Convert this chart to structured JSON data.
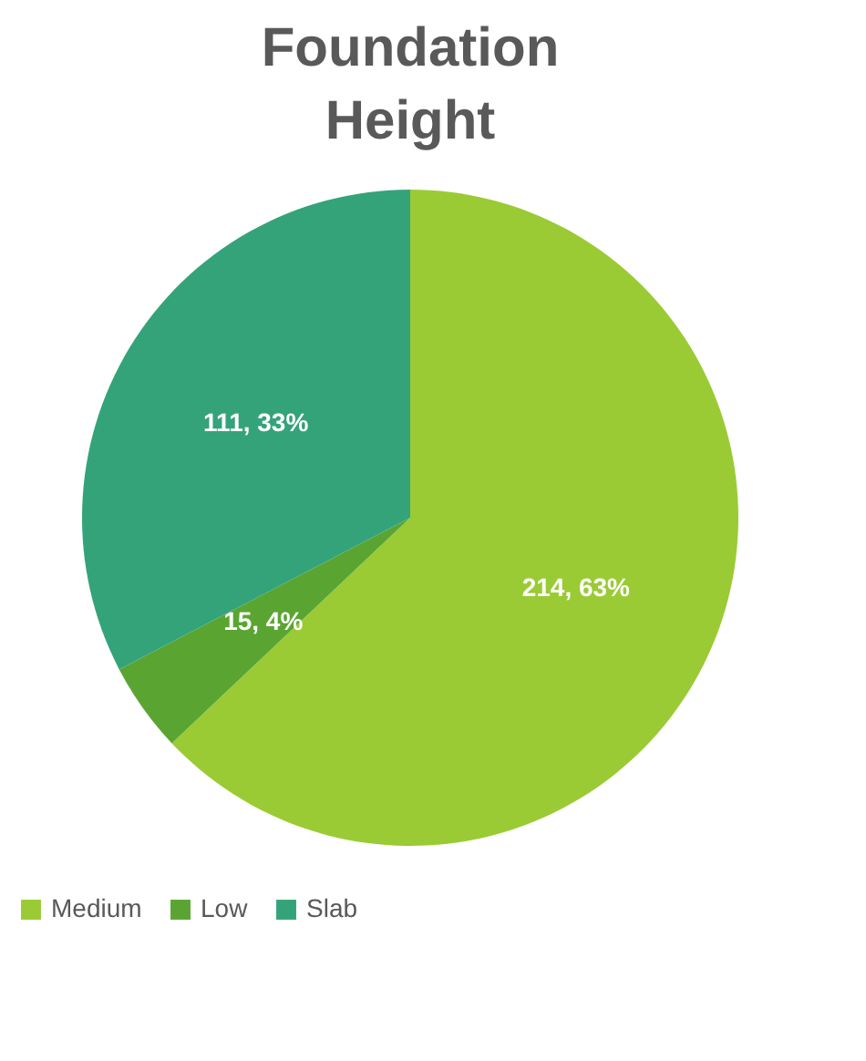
{
  "chart_data": {
    "type": "pie",
    "title": "Foundation Height",
    "categories": [
      "Medium",
      "Low",
      "Slab"
    ],
    "values": [
      214,
      15,
      111
    ],
    "colors": [
      "#9acb34",
      "#5aa532",
      "#34a37a"
    ],
    "value_labels": [
      "214, 63%",
      "15, 4%",
      "111, 33%"
    ],
    "legend": "bottom"
  }
}
